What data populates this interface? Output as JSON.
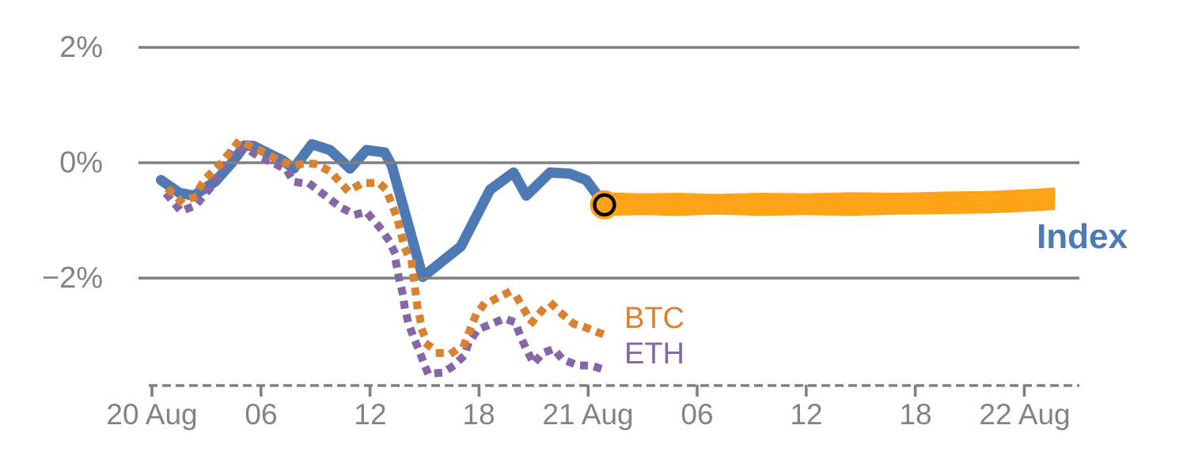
{
  "chart_data": {
    "type": "line",
    "title": "",
    "xlabel": "",
    "ylabel": "",
    "grid": "horizontal-on",
    "legend_position": "end-of-line-labels",
    "ylim": [
      -3.9,
      2.5
    ],
    "xlim_hours_from_20aug": [
      -0.8,
      51
    ],
    "y_ticks": [
      {
        "label": "2%",
        "value": 2
      },
      {
        "label": "0%",
        "value": 0
      },
      {
        "label": "−2%",
        "value": -2
      }
    ],
    "x_ticks": [
      {
        "label": "20 Aug",
        "hour": 0
      },
      {
        "label": "06",
        "hour": 6
      },
      {
        "label": "12",
        "hour": 12
      },
      {
        "label": "18",
        "hour": 18
      },
      {
        "label": "21 Aug",
        "hour": 24
      },
      {
        "label": "06",
        "hour": 30
      },
      {
        "label": "12",
        "hour": 36
      },
      {
        "label": "18",
        "hour": 42
      },
      {
        "label": "22 Aug",
        "hour": 48
      }
    ],
    "unit": "percent change",
    "series": [
      {
        "name": "Index",
        "style": "solid",
        "points": [
          [
            0.5,
            -0.3
          ],
          [
            1.5,
            -0.52
          ],
          [
            2.3,
            -0.57
          ],
          [
            3.5,
            -0.32
          ],
          [
            4.4,
            0.0
          ],
          [
            5.1,
            0.3
          ],
          [
            5.6,
            0.29
          ],
          [
            6.3,
            0.18
          ],
          [
            7.2,
            0.04
          ],
          [
            7.8,
            -0.1
          ],
          [
            8.8,
            0.32
          ],
          [
            9.8,
            0.22
          ],
          [
            10.9,
            -0.1
          ],
          [
            11.8,
            0.22
          ],
          [
            12.8,
            0.18
          ],
          [
            13.2,
            -0.05
          ],
          [
            14.9,
            -1.98
          ],
          [
            16.2,
            -1.65
          ],
          [
            17.0,
            -1.45
          ],
          [
            18.6,
            -0.47
          ],
          [
            19.9,
            -0.17
          ],
          [
            20.6,
            -0.57
          ],
          [
            21.9,
            -0.17
          ],
          [
            23.0,
            -0.19
          ],
          [
            23.9,
            -0.3
          ],
          [
            24.9,
            -0.73
          ]
        ]
      },
      {
        "name": "BTC",
        "style": "dotted",
        "points": [
          [
            1.0,
            -0.49
          ],
          [
            1.6,
            -0.67
          ],
          [
            2.3,
            -0.6
          ],
          [
            2.9,
            -0.29
          ],
          [
            3.8,
            -0.01
          ],
          [
            4.8,
            0.38
          ],
          [
            5.4,
            0.29
          ],
          [
            6.2,
            0.18
          ],
          [
            6.9,
            0.05
          ],
          [
            7.8,
            -0.05
          ],
          [
            8.4,
            -0.01
          ],
          [
            9.0,
            -0.02
          ],
          [
            9.8,
            -0.15
          ],
          [
            10.8,
            -0.49
          ],
          [
            11.6,
            -0.35
          ],
          [
            12.5,
            -0.35
          ],
          [
            12.9,
            -0.47
          ],
          [
            13.5,
            -0.97
          ],
          [
            13.9,
            -1.47
          ],
          [
            14.3,
            -1.74
          ],
          [
            14.6,
            -2.48
          ],
          [
            14.9,
            -2.93
          ],
          [
            15.2,
            -3.16
          ],
          [
            15.8,
            -3.3
          ],
          [
            16.5,
            -3.3
          ],
          [
            17.2,
            -3.14
          ],
          [
            17.8,
            -2.66
          ],
          [
            18.2,
            -2.48
          ],
          [
            18.9,
            -2.36
          ],
          [
            19.6,
            -2.25
          ],
          [
            20.1,
            -2.34
          ],
          [
            20.5,
            -2.56
          ],
          [
            20.9,
            -2.77
          ],
          [
            21.5,
            -2.55
          ],
          [
            22.0,
            -2.45
          ],
          [
            22.6,
            -2.63
          ],
          [
            23.2,
            -2.79
          ],
          [
            23.9,
            -2.86
          ],
          [
            24.7,
            -2.96
          ]
        ]
      },
      {
        "name": "ETH",
        "style": "dotted",
        "points": [
          [
            0.9,
            -0.58
          ],
          [
            1.6,
            -0.84
          ],
          [
            2.4,
            -0.74
          ],
          [
            3.4,
            -0.37
          ],
          [
            4.4,
            0.22
          ],
          [
            5.2,
            0.25
          ],
          [
            6.0,
            0.08
          ],
          [
            6.6,
            0.01
          ],
          [
            7.4,
            -0.12
          ],
          [
            7.8,
            -0.33
          ],
          [
            8.7,
            -0.37
          ],
          [
            9.2,
            -0.49
          ],
          [
            10.4,
            -0.78
          ],
          [
            11.2,
            -0.9
          ],
          [
            11.8,
            -0.85
          ],
          [
            12.5,
            -1.11
          ],
          [
            13.0,
            -1.33
          ],
          [
            13.3,
            -1.52
          ],
          [
            13.6,
            -2.01
          ],
          [
            13.8,
            -2.27
          ],
          [
            13.9,
            -2.49
          ],
          [
            14.1,
            -2.77
          ],
          [
            14.4,
            -3.03
          ],
          [
            14.7,
            -3.25
          ],
          [
            15.0,
            -3.51
          ],
          [
            15.2,
            -3.66
          ],
          [
            16.0,
            -3.64
          ],
          [
            16.6,
            -3.52
          ],
          [
            17.2,
            -3.34
          ],
          [
            17.4,
            -3.14
          ],
          [
            17.9,
            -2.9
          ],
          [
            18.7,
            -2.79
          ],
          [
            19.4,
            -2.7
          ],
          [
            20.0,
            -2.77
          ],
          [
            20.3,
            -3.03
          ],
          [
            20.6,
            -3.23
          ],
          [
            21.0,
            -3.48
          ],
          [
            21.5,
            -3.3
          ],
          [
            22.1,
            -3.23
          ],
          [
            22.6,
            -3.41
          ],
          [
            23.4,
            -3.51
          ],
          [
            24.2,
            -3.52
          ],
          [
            24.8,
            -3.58
          ]
        ]
      }
    ],
    "forecast_band": {
      "series": "Index",
      "start_marker": {
        "hour": 24.9,
        "value": -0.73
      },
      "hours": [
        24.9,
        27,
        29,
        31,
        33.5,
        36,
        38.5,
        41,
        43.5,
        46,
        48,
        49.7
      ],
      "top": [
        -0.51,
        -0.53,
        -0.52,
        -0.54,
        -0.52,
        -0.53,
        -0.51,
        -0.52,
        -0.5,
        -0.49,
        -0.46,
        -0.43
      ],
      "bottom": [
        -0.92,
        -0.91,
        -0.92,
        -0.9,
        -0.92,
        -0.91,
        -0.92,
        -0.9,
        -0.89,
        -0.88,
        -0.85,
        -0.82
      ]
    },
    "colors": {
      "index": "#4D79B5",
      "btc": "#D9822F",
      "eth": "#8566A9",
      "band": "#FFA419",
      "marker_ring": "#000000",
      "grid": "#808080",
      "axis_text": "#838383"
    }
  }
}
